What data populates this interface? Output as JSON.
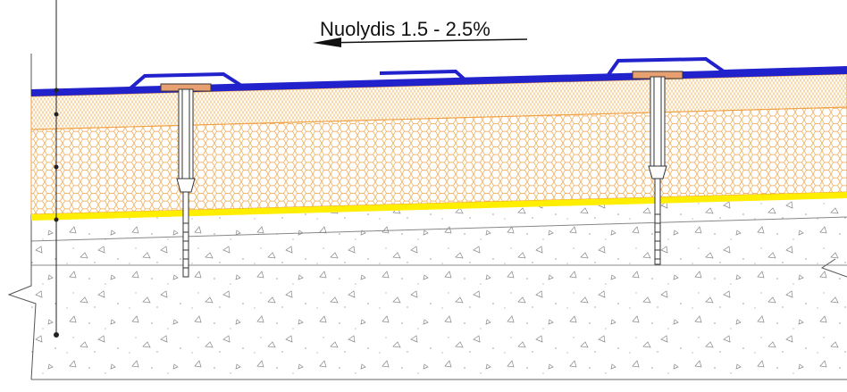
{
  "annotation": "Nuolydis 1.5 - 2.5%"
}
